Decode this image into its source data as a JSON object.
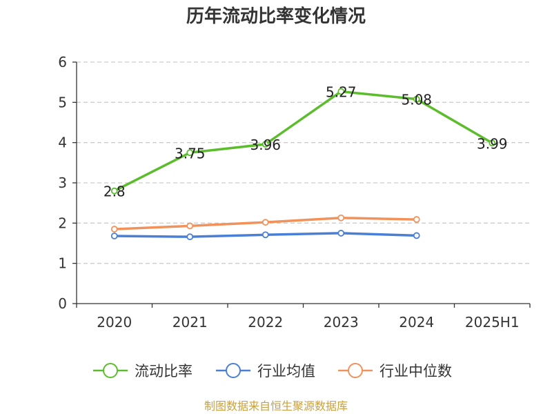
{
  "title": "历年流动比率变化情况",
  "source": "制图数据来自恒生聚源数据库",
  "colors": {
    "current_ratio": "#5cbd2c",
    "industry_mean": "#4a7fd6",
    "industry_median": "#f2925b",
    "grid": "#cccccc",
    "axis": "#333333"
  },
  "chart_data": {
    "type": "line",
    "title": "历年流动比率变化情况",
    "categories": [
      "2020",
      "2021",
      "2022",
      "2023",
      "2024",
      "2025H1"
    ],
    "ylim": [
      0,
      6
    ],
    "yticks": [
      0,
      1,
      2,
      3,
      4,
      5,
      6
    ],
    "grid": true,
    "legend": "bottom",
    "series": [
      {
        "name": "流动比率",
        "color": "#5cbd2c",
        "values": [
          2.8,
          3.75,
          3.96,
          5.27,
          5.08,
          3.99
        ],
        "labels": [
          "2.8",
          "3.75",
          "3.96",
          "5.27",
          "5.08",
          "3.99"
        ]
      },
      {
        "name": "行业均值",
        "color": "#4a7fd6",
        "values": [
          1.68,
          1.66,
          1.71,
          1.75,
          1.69,
          null
        ]
      },
      {
        "name": "行业中位数",
        "color": "#f2925b",
        "values": [
          1.85,
          1.93,
          2.02,
          2.13,
          2.09,
          null
        ]
      }
    ]
  }
}
